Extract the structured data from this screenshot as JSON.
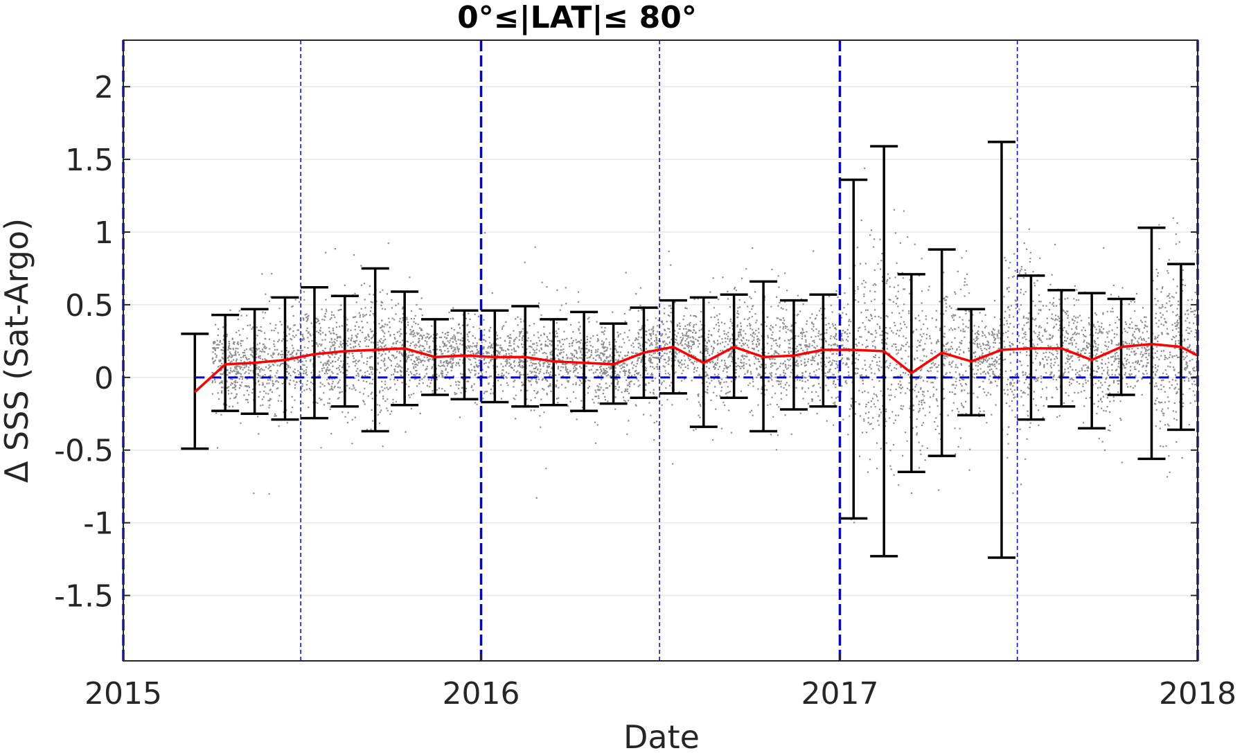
{
  "chart_data": {
    "type": "scatter",
    "title": "0°≤|LAT|≤ 80°",
    "xlabel": "Date",
    "ylabel": "Δ SSS (Sat-Argo)",
    "xlim": [
      "2015-01-01",
      "2018-01-01"
    ],
    "ylim": [
      -1.95,
      2.32
    ],
    "x_ticks": [
      "2015",
      "2016",
      "2017",
      "2018"
    ],
    "y_ticks": [
      {
        "value": 2,
        "label": "2"
      },
      {
        "value": 1.5,
        "label": "1.5"
      },
      {
        "value": 1,
        "label": "1"
      },
      {
        "value": 0.5,
        "label": "0.5"
      },
      {
        "value": 0,
        "label": "0"
      },
      {
        "value": -0.5,
        "label": "-0.5"
      },
      {
        "value": -1,
        "label": "-1"
      },
      {
        "value": -1.5,
        "label": "-1.5"
      }
    ],
    "grid": true,
    "colors": {
      "scatter": "#8c8c8c",
      "mean_line": "#ff0000",
      "error_bars": "#000000",
      "reference_lines": "#0000e6"
    },
    "vertical_reference_lines": [
      {
        "date": "2015-01-01",
        "style": "thick-dashed"
      },
      {
        "date": "2015-07-01",
        "style": "thin-dashed"
      },
      {
        "date": "2016-01-01",
        "style": "thick-dashed"
      },
      {
        "date": "2016-07-01",
        "style": "thin-dashed"
      },
      {
        "date": "2017-01-01",
        "style": "thick-dashed"
      },
      {
        "date": "2017-07-01",
        "style": "thin-dashed"
      },
      {
        "date": "2018-01-01",
        "style": "thick-dashed"
      }
    ],
    "horizontal_reference_line": {
      "y": 0,
      "style": "dashed"
    },
    "series": [
      {
        "type": "line-with-error-bars",
        "points": [
          {
            "date": "2015-03-15",
            "mean": -0.1,
            "low": -0.49,
            "high": 0.3
          },
          {
            "date": "2015-04-15",
            "mean": 0.09,
            "low": -0.23,
            "high": 0.43
          },
          {
            "date": "2015-05-15",
            "mean": 0.1,
            "low": -0.25,
            "high": 0.47
          },
          {
            "date": "2015-06-15",
            "mean": 0.12,
            "low": -0.29,
            "high": 0.55
          },
          {
            "date": "2015-07-15",
            "mean": 0.16,
            "low": -0.28,
            "high": 0.62
          },
          {
            "date": "2015-08-15",
            "mean": 0.18,
            "low": -0.2,
            "high": 0.56
          },
          {
            "date": "2015-09-15",
            "mean": 0.19,
            "low": -0.37,
            "high": 0.75
          },
          {
            "date": "2015-10-15",
            "mean": 0.2,
            "low": -0.19,
            "high": 0.59
          },
          {
            "date": "2015-11-15",
            "mean": 0.14,
            "low": -0.12,
            "high": 0.4
          },
          {
            "date": "2015-12-15",
            "mean": 0.15,
            "low": -0.15,
            "high": 0.46
          },
          {
            "date": "2016-01-15",
            "mean": 0.14,
            "low": -0.17,
            "high": 0.46
          },
          {
            "date": "2016-02-15",
            "mean": 0.14,
            "low": -0.2,
            "high": 0.49
          },
          {
            "date": "2016-03-15",
            "mean": 0.11,
            "low": -0.19,
            "high": 0.4
          },
          {
            "date": "2016-04-15",
            "mean": 0.1,
            "low": -0.23,
            "high": 0.45
          },
          {
            "date": "2016-05-15",
            "mean": 0.09,
            "low": -0.18,
            "high": 0.37
          },
          {
            "date": "2016-06-15",
            "mean": 0.17,
            "low": -0.14,
            "high": 0.48
          },
          {
            "date": "2016-07-15",
            "mean": 0.21,
            "low": -0.11,
            "high": 0.53
          },
          {
            "date": "2016-08-15",
            "mean": 0.1,
            "low": -0.34,
            "high": 0.55
          },
          {
            "date": "2016-09-15",
            "mean": 0.21,
            "low": -0.14,
            "high": 0.57
          },
          {
            "date": "2016-10-15",
            "mean": 0.14,
            "low": -0.37,
            "high": 0.66
          },
          {
            "date": "2016-11-15",
            "mean": 0.15,
            "low": -0.22,
            "high": 0.53
          },
          {
            "date": "2016-12-15",
            "mean": 0.19,
            "low": -0.2,
            "high": 0.57
          },
          {
            "date": "2017-01-15",
            "mean": 0.19,
            "low": -0.97,
            "high": 1.36
          },
          {
            "date": "2017-02-15",
            "mean": 0.18,
            "low": -1.23,
            "high": 1.59
          },
          {
            "date": "2017-03-15",
            "mean": 0.03,
            "low": -0.65,
            "high": 0.71
          },
          {
            "date": "2017-04-15",
            "mean": 0.17,
            "low": -0.54,
            "high": 0.88
          },
          {
            "date": "2017-05-15",
            "mean": 0.11,
            "low": -0.26,
            "high": 0.47
          },
          {
            "date": "2017-06-15",
            "mean": 0.19,
            "low": -1.24,
            "high": 1.62
          },
          {
            "date": "2017-07-15",
            "mean": 0.2,
            "low": -0.29,
            "high": 0.7
          },
          {
            "date": "2017-08-15",
            "mean": 0.2,
            "low": -0.2,
            "high": 0.6
          },
          {
            "date": "2017-09-15",
            "mean": 0.12,
            "low": -0.35,
            "high": 0.58
          },
          {
            "date": "2017-10-15",
            "mean": 0.21,
            "low": -0.12,
            "high": 0.54
          },
          {
            "date": "2017-11-15",
            "mean": 0.23,
            "low": -0.56,
            "high": 1.03
          },
          {
            "date": "2017-12-15",
            "mean": 0.21,
            "low": -0.36,
            "high": 0.78
          },
          {
            "date": "2018-01-01",
            "mean": 0.15
          }
        ]
      }
    ]
  }
}
